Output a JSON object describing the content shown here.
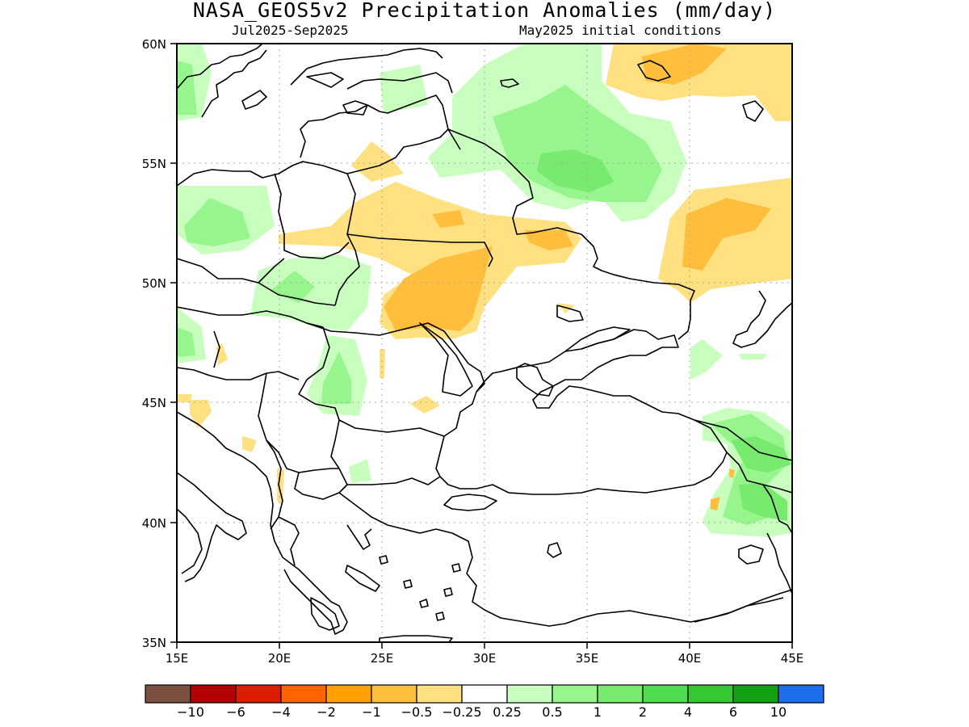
{
  "title": "NASA_GEOS5v2 Precipitation Anomalies (mm/day)",
  "period": "Jul2025-Sep2025",
  "initial_conditions": "May2025 initial conditions",
  "axes": {
    "lat_labels": [
      "60N",
      "55N",
      "50N",
      "45N",
      "40N",
      "35N"
    ],
    "lon_labels": [
      "15E",
      "20E",
      "25E",
      "30E",
      "35E",
      "40E",
      "45E"
    ]
  },
  "colorbar": {
    "colors": [
      "#7b5040",
      "#b40000",
      "#dc1e00",
      "#ff6400",
      "#ffa000",
      "#ffbe3c",
      "#ffe182",
      "#ffffff",
      "#c8ffbe",
      "#96f58c",
      "#78eb6e",
      "#50dc50",
      "#36c832",
      "#14a014",
      "#1e6eeb"
    ],
    "labels": [
      "-10",
      "-6",
      "-4",
      "-2",
      "-1",
      "-0.5",
      "-0.25",
      "0.25",
      "0.5",
      "1",
      "2",
      "4",
      "6",
      "10"
    ]
  }
}
